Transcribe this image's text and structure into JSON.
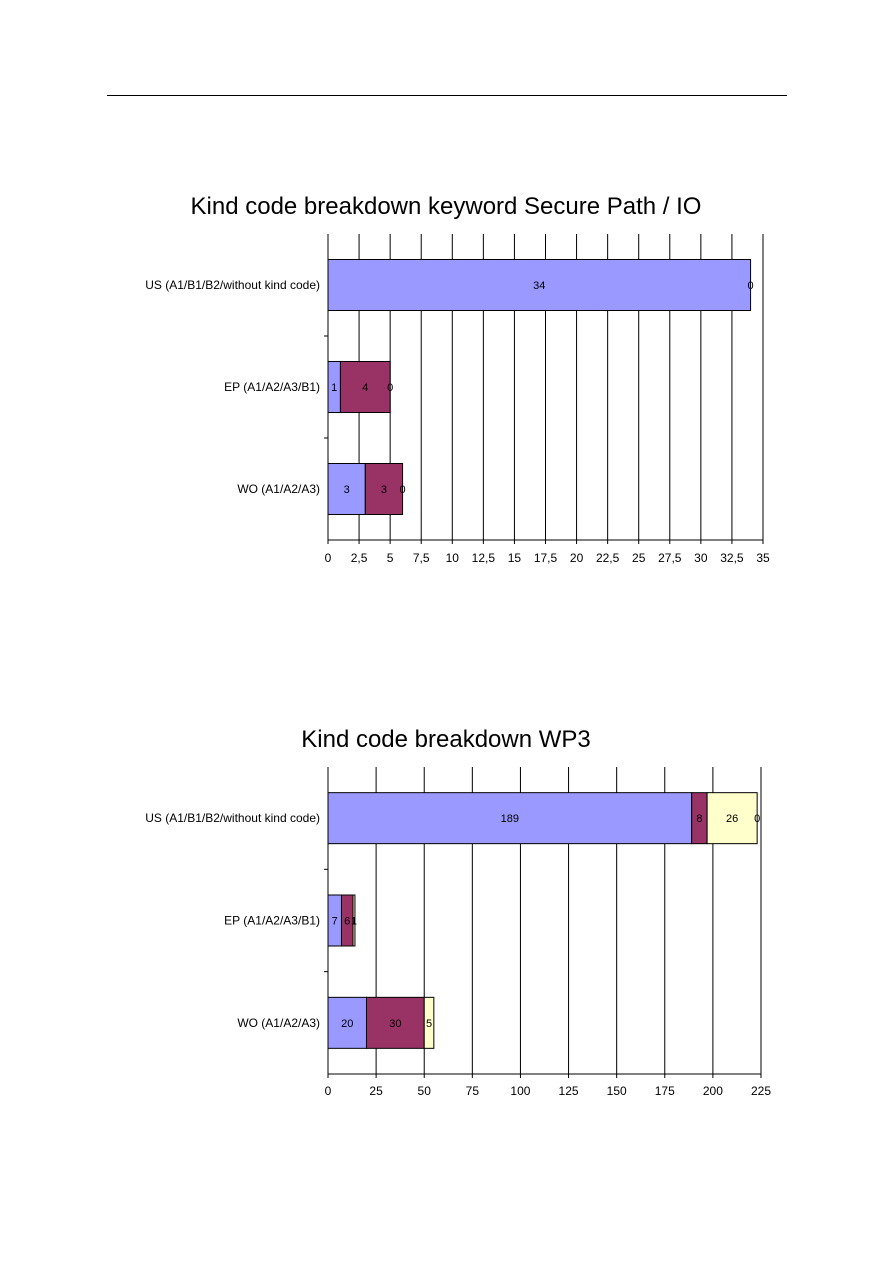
{
  "chart_data": [
    {
      "type": "bar",
      "orientation": "horizontal",
      "stacked": true,
      "title": "Kind code breakdown keyword Secure Path / IO",
      "categories": [
        "US (A1/B1/B2/without kind code)",
        "EP (A1/A2/A3/B1)",
        "WO (A1/A2/A3)"
      ],
      "series": [
        {
          "values": [
            34,
            1,
            3
          ],
          "labels": [
            "34",
            "1",
            "3"
          ]
        },
        {
          "values": [
            0,
            4,
            3
          ],
          "labels": [
            "0",
            "4",
            "3"
          ]
        },
        {
          "values": [
            0,
            0,
            0
          ],
          "labels": [
            "",
            "0",
            "0"
          ]
        }
      ],
      "colors": [
        "#9999ff",
        "#993366",
        "#ffffcc"
      ],
      "xlim": [
        0,
        35
      ],
      "xticks": [
        "0",
        "2,5",
        "5",
        "7,5",
        "10",
        "12,5",
        "15",
        "17,5",
        "20",
        "22,5",
        "25",
        "27,5",
        "30",
        "32,5",
        "35"
      ],
      "grid": true
    },
    {
      "type": "bar",
      "orientation": "horizontal",
      "stacked": true,
      "title": "Kind code breakdown WP3",
      "categories": [
        "US (A1/B1/B2/without kind code)",
        "EP (A1/A2/A3/B1)",
        "WO (A1/A2/A3)"
      ],
      "series": [
        {
          "values": [
            189,
            7,
            20
          ],
          "labels": [
            "189",
            "7",
            "20"
          ]
        },
        {
          "values": [
            8,
            6,
            30
          ],
          "labels": [
            "8",
            "6",
            "30"
          ]
        },
        {
          "values": [
            26,
            1,
            5
          ],
          "labels": [
            "26",
            "1",
            "5"
          ]
        },
        {
          "values": [
            0,
            0,
            0
          ],
          "labels": [
            "0",
            "",
            ""
          ]
        }
      ],
      "colors": [
        "#9999ff",
        "#993366",
        "#ffffcc",
        "#ccffff"
      ],
      "xlim": [
        0,
        225
      ],
      "xticks": [
        "0",
        "25",
        "50",
        "75",
        "100",
        "125",
        "150",
        "175",
        "200",
        "225"
      ],
      "grid": true
    }
  ]
}
